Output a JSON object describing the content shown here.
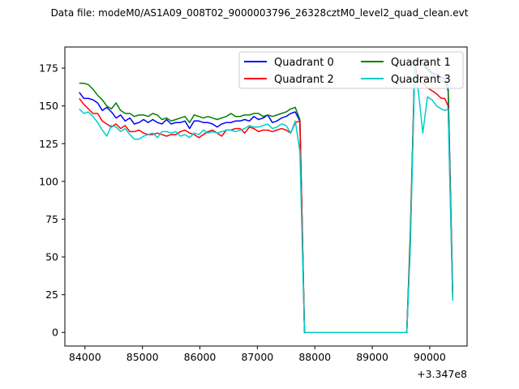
{
  "chart_data": {
    "type": "line",
    "title": "Data file: modeM0/AS1A09_008T02_9000003796_26328cztM0_level2_quad_clean.evt",
    "xlabel": "",
    "ylabel": "",
    "x_offset_label": "+3.347e8",
    "xlim": [
      83650,
      90650
    ],
    "ylim": [
      -9,
      189
    ],
    "x_ticks": [
      84000,
      85000,
      86000,
      87000,
      88000,
      89000,
      90000
    ],
    "x_tick_labels": [
      "84000",
      "85000",
      "86000",
      "87000",
      "88000",
      "89000",
      "90000"
    ],
    "y_ticks": [
      0,
      25,
      50,
      75,
      100,
      125,
      150,
      175
    ],
    "y_tick_labels": [
      "0",
      "25",
      "50",
      "75",
      "100",
      "125",
      "150",
      "175"
    ],
    "grid": false,
    "legend_position": "top-right",
    "legend_columns": 2,
    "x": [
      83900,
      83980,
      84060,
      84140,
      84220,
      84300,
      84380,
      84460,
      84540,
      84620,
      84700,
      84780,
      84860,
      84940,
      85020,
      85100,
      85180,
      85260,
      85340,
      85420,
      85500,
      85580,
      85660,
      85740,
      85820,
      85900,
      85980,
      86060,
      86140,
      86220,
      86300,
      86380,
      86460,
      86540,
      86620,
      86700,
      86780,
      86860,
      86940,
      87020,
      87100,
      87180,
      87260,
      87340,
      87420,
      87500,
      87580,
      87660,
      87740,
      87820,
      87880,
      89600,
      89660,
      89740,
      89800,
      89880,
      89960,
      90040,
      90120,
      90200,
      90260,
      90320,
      90400
    ],
    "series": [
      {
        "name": "Quadrant 0",
        "color": "#0000ff",
        "values": [
          159,
          155,
          155,
          154,
          152,
          147,
          149,
          146,
          142,
          144,
          140,
          142,
          138,
          139,
          141,
          139,
          141,
          139,
          138,
          141,
          138,
          139,
          139,
          140,
          135,
          140,
          140,
          139,
          139,
          138,
          136,
          138,
          139,
          139,
          140,
          140,
          141,
          140,
          143,
          141,
          142,
          144,
          139,
          140,
          142,
          143,
          145,
          146,
          140,
          0,
          0,
          0,
          60,
          180,
          180,
          178,
          175,
          172,
          171,
          169,
          168,
          163,
          25
        ]
      },
      {
        "name": "Quadrant 1",
        "color": "#008000",
        "values": [
          165,
          165,
          164,
          161,
          157,
          154,
          150,
          148,
          152,
          147,
          145,
          145,
          143,
          144,
          144,
          143,
          145,
          144,
          141,
          142,
          140,
          141,
          142,
          143,
          139,
          144,
          143,
          142,
          143,
          142,
          141,
          142,
          143,
          145,
          143,
          143,
          144,
          144,
          145,
          145,
          143,
          144,
          143,
          144,
          145,
          146,
          148,
          149,
          141,
          0,
          0,
          0,
          65,
          180,
          180,
          177,
          174,
          171,
          169,
          167,
          166,
          160,
          24
        ]
      },
      {
        "name": "Quadrant 2",
        "color": "#ff0000",
        "values": [
          155,
          151,
          148,
          145,
          145,
          140,
          138,
          136,
          138,
          135,
          137,
          133,
          133,
          134,
          132,
          131,
          131,
          132,
          131,
          130,
          131,
          131,
          133,
          134,
          132,
          131,
          129,
          131,
          133,
          134,
          132,
          130,
          134,
          134,
          135,
          135,
          132,
          136,
          135,
          133,
          134,
          134,
          133,
          134,
          135,
          134,
          132,
          139,
          140,
          0,
          0,
          0,
          60,
          178,
          168,
          165,
          162,
          160,
          158,
          155,
          155,
          150,
          22
        ]
      },
      {
        "name": "Quadrant 3",
        "color": "#00cccc",
        "values": [
          148,
          145,
          146,
          143,
          139,
          134,
          130,
          137,
          136,
          133,
          135,
          131,
          128,
          128,
          130,
          131,
          132,
          129,
          133,
          133,
          132,
          133,
          130,
          131,
          129,
          132,
          131,
          134,
          132,
          133,
          132,
          133,
          134,
          134,
          133,
          134,
          135,
          137,
          136,
          136,
          137,
          138,
          135,
          136,
          138,
          137,
          132,
          140,
          120,
          0,
          0,
          0,
          55,
          176,
          160,
          132,
          156,
          154,
          150,
          148,
          147,
          148,
          21
        ]
      }
    ]
  }
}
